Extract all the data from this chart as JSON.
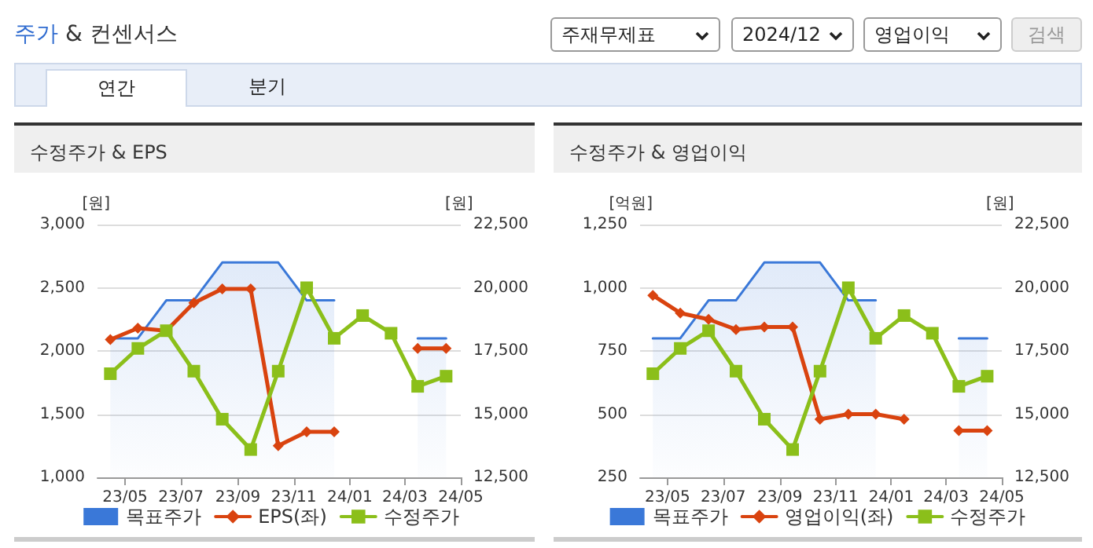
{
  "chart_data": [
    {
      "type": "other",
      "title": "주가 & 컨센서스",
      "annotations": [
        "주재무제표",
        "2024/12",
        "영업이익",
        "검색",
        "연간",
        "분기"
      ]
    },
    {
      "type": "line",
      "title": "수정주가 & EPS",
      "ylabel": "[원]",
      "y2label": "[원]",
      "x": [
        "2023-04-15",
        "2023-05-15",
        "2023-06-15",
        "2023-07-15",
        "2023-08-15",
        "2023-09-15",
        "2023-10-15",
        "2023-11-15",
        "2023-12-15",
        "2024-01-15",
        "2024-02-15",
        "2024-03-15",
        "2024-04-15"
      ],
      "xlim": [
        "2023-04-01",
        "2024-05-01"
      ],
      "xticks": [
        {
          "value": "2023-05-01",
          "label": "23/05"
        },
        {
          "value": "2023-07-01",
          "label": "23/07"
        },
        {
          "value": "2023-09-01",
          "label": "23/09"
        },
        {
          "value": "2023-11-01",
          "label": "23/11"
        },
        {
          "value": "2024-01-01",
          "label": "24/01"
        },
        {
          "value": "2024-03-01",
          "label": "24/03"
        },
        {
          "value": "2024-05-01",
          "label": "24/05"
        }
      ],
      "ylim": [
        1000,
        3000
      ],
      "yticks": [
        {
          "value": 1000,
          "label": "1,000"
        },
        {
          "value": 1500,
          "label": "1,500"
        },
        {
          "value": 2000,
          "label": "2,000"
        },
        {
          "value": 2500,
          "label": "2,500"
        },
        {
          "value": 3000,
          "label": "3,000"
        }
      ],
      "y2lim": [
        12500,
        22500
      ],
      "y2ticks": [
        {
          "value": 12500,
          "label": "12,500"
        },
        {
          "value": 15000,
          "label": "15,000"
        },
        {
          "value": 17500,
          "label": "17,500"
        },
        {
          "value": 20000,
          "label": "20,000"
        },
        {
          "value": 22500,
          "label": "22,500"
        }
      ],
      "grid": "y",
      "legend": "bottom",
      "series": [
        {
          "name": "목표주가",
          "type": "area",
          "axis": "y2",
          "color": "#3a78d8",
          "marker": "none",
          "values": [
            18000,
            18000,
            19500,
            19500,
            21000,
            21000,
            21000,
            19500,
            19500,
            null,
            null,
            18000,
            18000
          ]
        },
        {
          "name": "EPS(좌)",
          "type": "line",
          "color": "#d9430f",
          "marker": "diamond",
          "values": [
            2090,
            2180,
            2160,
            2380,
            2490,
            2490,
            1250,
            1360,
            1360,
            null,
            null,
            2020,
            2020
          ]
        },
        {
          "name": "수정주가",
          "type": "line",
          "axis": "y2",
          "color": "#8bbf1a",
          "marker": "square",
          "values": [
            16600,
            17600,
            18300,
            16700,
            14800,
            13600,
            16700,
            20000,
            18000,
            18900,
            18200,
            16100,
            16500
          ]
        }
      ]
    },
    {
      "type": "line",
      "title": "수정주가 & 영업이익",
      "ylabel": "[억원]",
      "y2label": "[원]",
      "x": [
        "2023-04-15",
        "2023-05-15",
        "2023-06-15",
        "2023-07-15",
        "2023-08-15",
        "2023-09-15",
        "2023-10-15",
        "2023-11-15",
        "2023-12-15",
        "2024-01-15",
        "2024-02-15",
        "2024-03-15",
        "2024-04-15"
      ],
      "xlim": [
        "2023-04-01",
        "2024-05-01"
      ],
      "xticks": [
        {
          "value": "2023-05-01",
          "label": "23/05"
        },
        {
          "value": "2023-07-01",
          "label": "23/07"
        },
        {
          "value": "2023-09-01",
          "label": "23/09"
        },
        {
          "value": "2023-11-01",
          "label": "23/11"
        },
        {
          "value": "2024-01-01",
          "label": "24/01"
        },
        {
          "value": "2024-03-01",
          "label": "24/03"
        },
        {
          "value": "2024-05-01",
          "label": "24/05"
        }
      ],
      "ylim": [
        250,
        1250
      ],
      "yticks": [
        250,
        500,
        750,
        {
          "value": 1000,
          "label": "1,000"
        },
        {
          "value": 1250,
          "label": "1,250"
        }
      ],
      "y2lim": [
        12500,
        22500
      ],
      "y2ticks": [
        {
          "value": 12500,
          "label": "12,500"
        },
        {
          "value": 15000,
          "label": "15,000"
        },
        {
          "value": 17500,
          "label": "17,500"
        },
        {
          "value": 20000,
          "label": "20,000"
        },
        {
          "value": 22500,
          "label": "22,500"
        }
      ],
      "grid": "y",
      "legend": "bottom",
      "series": [
        {
          "name": "목표주가",
          "type": "area",
          "axis": "y2",
          "color": "#3a78d8",
          "marker": "none",
          "values": [
            18000,
            18000,
            19500,
            19500,
            21000,
            21000,
            21000,
            19500,
            19500,
            null,
            null,
            18000,
            18000
          ]
        },
        {
          "name": "영업이익(좌)",
          "type": "line",
          "color": "#d9430f",
          "marker": "diamond",
          "values": [
            970,
            900,
            875,
            835,
            845,
            845,
            480,
            500,
            500,
            480,
            null,
            435,
            435
          ]
        },
        {
          "name": "수정주가",
          "type": "line",
          "axis": "y2",
          "color": "#8bbf1a",
          "marker": "square",
          "values": [
            16600,
            17600,
            18300,
            16700,
            14800,
            13600,
            16700,
            20000,
            18000,
            18900,
            18200,
            16100,
            16500
          ]
        }
      ]
    }
  ]
}
